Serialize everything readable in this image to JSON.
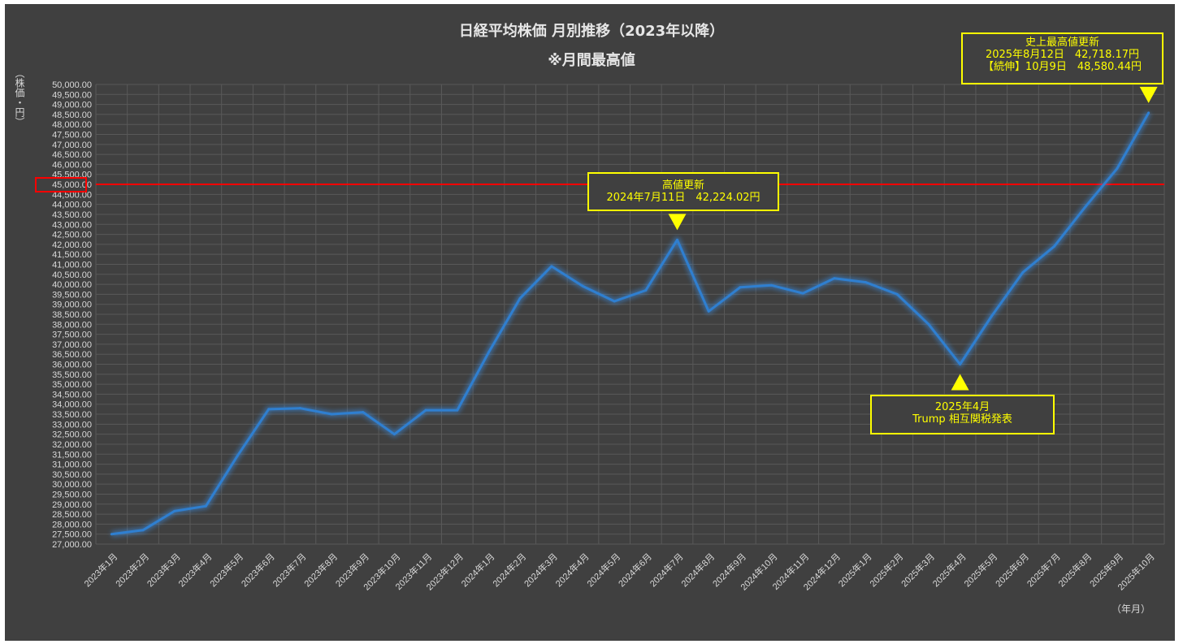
{
  "chart_data": {
    "type": "line",
    "title": "日経平均株価 月別推移（2023年以降）",
    "subtitle": "※月間最高値",
    "ylabel": "（株価・円）",
    "xlabel": "（年月）",
    "ylim": [
      27000,
      50000
    ],
    "ytick_step": 500,
    "grid": true,
    "categories": [
      "2023年1月",
      "2023年2月",
      "2023年3月",
      "2023年4月",
      "2023年5月",
      "2023年6月",
      "2023年7月",
      "2023年8月",
      "2023年9月",
      "2023年10月",
      "2023年11月",
      "2023年12月",
      "2024年1月",
      "2024年2月",
      "2024年3月",
      "2024年4月",
      "2024年5月",
      "2024年6月",
      "2024年7月",
      "2024年8月",
      "2024年9月",
      "2024年10月",
      "2024年11月",
      "2024年12月",
      "2025年1月",
      "2025年2月",
      "2025年3月",
      "2025年4月",
      "2025年5月",
      "2025年6月",
      "2025年7月",
      "2025年8月",
      "2025年9月",
      "2025年10月"
    ],
    "series": [
      {
        "color": "#2f7fd0",
        "values": [
          27500,
          27700,
          28650,
          28900,
          31400,
          33750,
          33800,
          33500,
          33600,
          32500,
          33700,
          33700,
          36600,
          39300,
          40900,
          39900,
          39150,
          39700,
          42224.02,
          38650,
          39850,
          39950,
          39550,
          40300,
          40100,
          39500,
          38000,
          36000,
          38400,
          40600,
          41900,
          43900,
          45800,
          48580.44
        ]
      }
    ],
    "reference_line": {
      "value": 45000,
      "color": "#ff0000",
      "label": "45,000.00"
    },
    "annotations": [
      {
        "lines": [
          "高値更新",
          "2024年7月11日　42,224.02円"
        ],
        "category": "2024年7月",
        "marker": "down"
      },
      {
        "lines": [
          "2025年4月",
          "Trump 相互関税発表"
        ],
        "category": "2025年4月",
        "marker": "up"
      },
      {
        "lines": [
          "史上最高値更新",
          "2025年8月12日　42,718.17円",
          "【続伸】10月9日　48,580.44円"
        ],
        "category": "2025年10月",
        "marker": "down"
      }
    ],
    "colors": {
      "background": "#404040",
      "grid": "#595959",
      "text": "#d9d9d9",
      "annotation": "#ffff00"
    }
  }
}
